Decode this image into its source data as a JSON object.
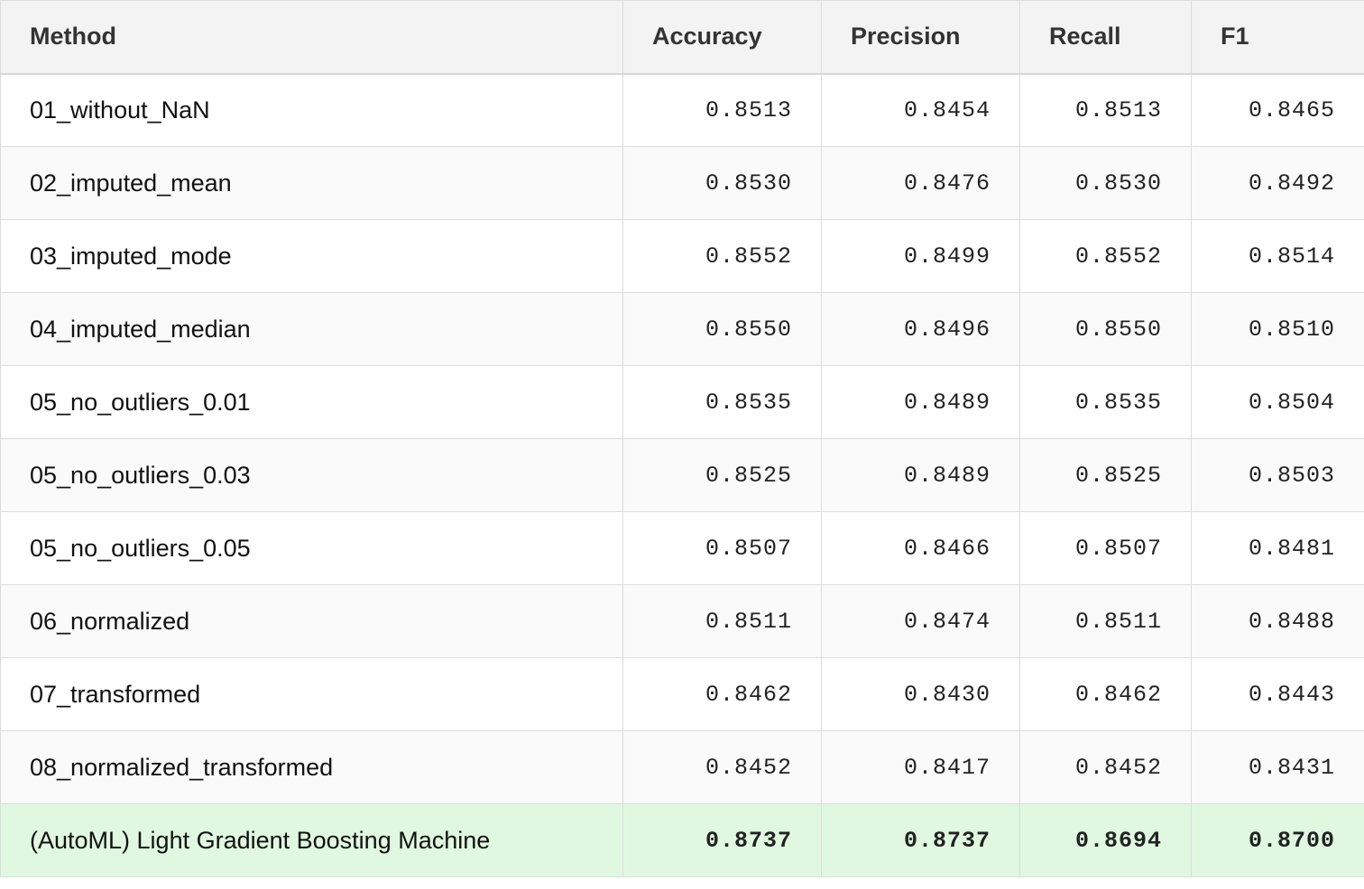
{
  "table": {
    "headers": [
      "Method",
      "Accuracy",
      "Precision",
      "Recall",
      "F1"
    ],
    "rows": [
      [
        "01_without_NaN",
        "0.8513",
        "0.8454",
        "0.8513",
        "0.8465"
      ],
      [
        "02_imputed_mean",
        "0.8530",
        "0.8476",
        "0.8530",
        "0.8492"
      ],
      [
        "03_imputed_mode",
        "0.8552",
        "0.8499",
        "0.8552",
        "0.8514"
      ],
      [
        "04_imputed_median",
        "0.8550",
        "0.8496",
        "0.8550",
        "0.8510"
      ],
      [
        "05_no_outliers_0.01",
        "0.8535",
        "0.8489",
        "0.8535",
        "0.8504"
      ],
      [
        "05_no_outliers_0.03",
        "0.8525",
        "0.8489",
        "0.8525",
        "0.8503"
      ],
      [
        "05_no_outliers_0.05",
        "0.8507",
        "0.8466",
        "0.8507",
        "0.8481"
      ],
      [
        "06_normalized",
        "0.8511",
        "0.8474",
        "0.8511",
        "0.8488"
      ],
      [
        "07_transformed",
        "0.8462",
        "0.8430",
        "0.8462",
        "0.8443"
      ],
      [
        "08_normalized_transformed",
        "0.8452",
        "0.8417",
        "0.8452",
        "0.8431"
      ],
      [
        "(AutoML) Light Gradient Boosting Machine",
        "0.8737",
        "0.8737",
        "0.8694",
        "0.8700"
      ]
    ],
    "highlight_row_color": "#e0f8e0"
  }
}
